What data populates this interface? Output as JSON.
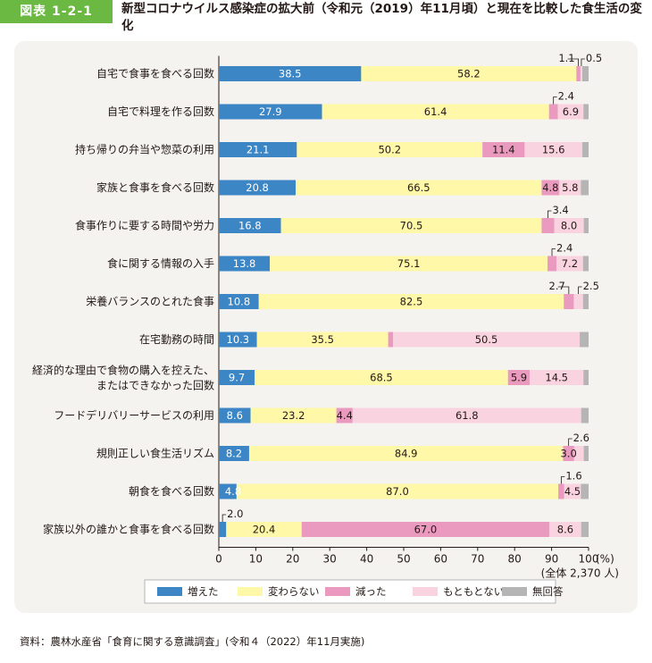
{
  "header": {
    "badge": "図表 1-2-1",
    "title": "新型コロナウイルス感染症の拡大前（令和元（2019）年11月頃）と現在を比較した食生活の変化"
  },
  "source": "資料：農林水産省「食育に関する意識調査」(令和４（2022）年11月実施)",
  "chart_data": {
    "type": "bar",
    "orientation": "horizontal",
    "stacked": true,
    "title": "新型コロナウイルス感染症の拡大前（令和元（2019）年11月頃）と現在を比較した食生活の変化",
    "xlabel": "(%)",
    "xlim": [
      0,
      100
    ],
    "x_ticks": [
      "0",
      "10",
      "20",
      "30",
      "40",
      "50",
      "60",
      "70",
      "80",
      "90",
      "100"
    ],
    "unit_label": "(%)",
    "note": "(全体 2,370 人)",
    "legend_position": "bottom",
    "categories": [
      [
        "自宅で食事を食べる回数"
      ],
      [
        "自宅で料理を作る回数"
      ],
      [
        "持ち帰りの弁当や惣菜の利用"
      ],
      [
        "家族と食事を食べる回数"
      ],
      [
        "食事作りに要する時間や労力"
      ],
      [
        "食に関する情報の入手"
      ],
      [
        "栄養バランスのとれた食事"
      ],
      [
        "在宅勤務の時間"
      ],
      [
        "経済的な理由で食物の購入を控えた、",
        "またはできなかった回数"
      ],
      [
        "フードデリバリーサービスの利用"
      ],
      [
        "規則正しい食生活リズム"
      ],
      [
        "朝食を食べる回数"
      ],
      [
        "家族以外の誰かと食事を食べる回数"
      ]
    ],
    "series": [
      {
        "name": "増えた",
        "color": "#3d86c6",
        "values": [
          38.5,
          27.9,
          21.1,
          20.8,
          16.8,
          13.8,
          10.8,
          10.3,
          9.7,
          8.6,
          8.2,
          4.8,
          2.0
        ]
      },
      {
        "name": "変わらない",
        "color": "#fff8a8",
        "values": [
          58.2,
          61.4,
          50.2,
          66.5,
          70.5,
          75.1,
          82.5,
          35.5,
          68.5,
          23.2,
          84.9,
          87.0,
          20.4
        ]
      },
      {
        "name": "減った",
        "color": "#ea9abf",
        "values": [
          1.1,
          2.4,
          11.4,
          4.8,
          3.4,
          2.4,
          2.7,
          1.3,
          5.9,
          4.4,
          3.0,
          1.6,
          67.0
        ]
      },
      {
        "name": "もともとない",
        "color": "#fad3e1",
        "values": [
          0.5,
          6.9,
          15.6,
          5.8,
          8.0,
          7.2,
          2.5,
          50.5,
          14.5,
          61.8,
          2.6,
          4.5,
          8.6
        ]
      },
      {
        "name": "無回答",
        "color": "#b5b5b6",
        "values": [
          1.7,
          1.4,
          1.7,
          2.1,
          1.3,
          1.5,
          1.5,
          2.4,
          1.4,
          2.0,
          1.3,
          2.1,
          2.0
        ]
      }
    ],
    "callout_values": [
      [
        "1.1",
        "0.5"
      ],
      [
        "2.4"
      ],
      [],
      [],
      [
        "3.4"
      ],
      [
        "2.4"
      ],
      [
        "2.7",
        "2.5"
      ],
      [],
      [],
      [],
      [
        "2.6"
      ],
      [
        "1.6"
      ],
      [
        "2.0"
      ]
    ]
  }
}
